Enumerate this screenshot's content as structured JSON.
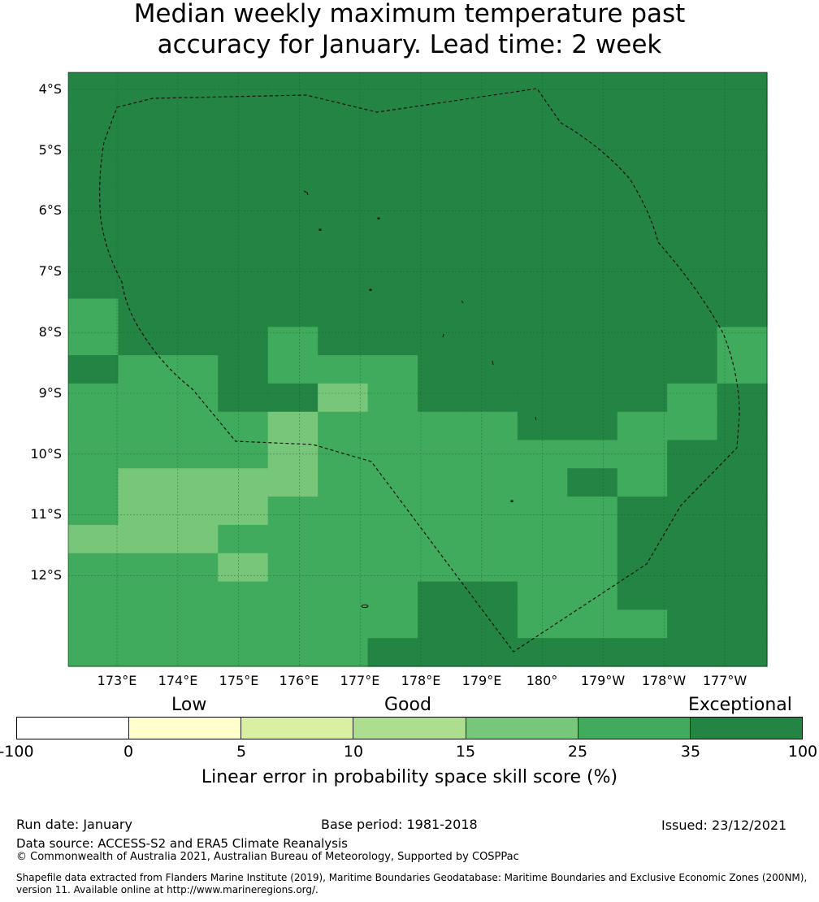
{
  "title": {
    "line1": "Median weekly maximum temperature past",
    "line2": "accuracy for January. Lead time: 2 week"
  },
  "map": {
    "lat_labels": [
      "4°S",
      "5°S",
      "6°S",
      "7°S",
      "8°S",
      "9°S",
      "10°S",
      "11°S",
      "12°S"
    ],
    "lon_labels": [
      "173°E",
      "174°E",
      "175°E",
      "176°E",
      "177°E",
      "178°E",
      "179°E",
      "180°",
      "179°W",
      "178°W",
      "177°W"
    ],
    "skill_grid_categories": [
      "66666666666666",
      "66666666666666",
      "66666666666666",
      "66666666666666",
      "66666666666666",
      "66666666666666",
      "66666666666666",
      "66666666666666",
      "56666666666666",
      "56665666666665",
      "65565556666665",
      "55566456666656",
      "55554555566556",
      "55554555555566",
      "54444555556566",
      "54445555555666",
      "44455555555666",
      "55545555555666",
      "55555556655666",
      "55555556655566",
      "55555566666666"
    ],
    "eez_outline": "Kiribati EEZ (Phoenix Islands) dashed boundary",
    "islands": "Phoenix Islands"
  },
  "colorbar": {
    "category_labels": [
      "Low",
      "Good",
      "Exceptional"
    ],
    "ticks": [
      "-100",
      "0",
      "5",
      "10",
      "15",
      "25",
      "35",
      "100"
    ],
    "colors": [
      "#ffffff",
      "#ffffcc",
      "#d9f0a3",
      "#addd8e",
      "#78c679",
      "#41ab5d",
      "#238443"
    ],
    "label": "Linear error in probability space skill score (%)"
  },
  "footer": {
    "run_date": "Run date: January",
    "base_period": "Base period: 1981-2018",
    "issued": "Issued: 23/12/2021",
    "data_source": "Data source: ACCESS-S2 and ERA5 Climate Reanalysis",
    "copyright": "© Commonwealth of Australia 2021, Australian Bureau of Meteorology, Supported by COSPPac",
    "shapefile_line1": "Shapefile data extracted from Flanders Marine Institute (2019), Maritime Boundaries Geodatabase: Maritime Boundaries and Exclusive Economic Zones (200NM),",
    "shapefile_line2": "version 11. Available online at http://www.marineregions.org/."
  }
}
